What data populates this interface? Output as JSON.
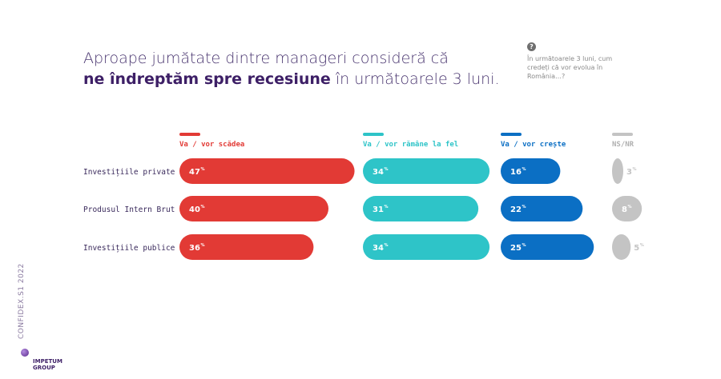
{
  "title": {
    "line1": "Aproape jumătate dintre manageri consideră că",
    "line2_bold": "ne îndreptăm spre recesiune",
    "line2_rest": " în următoarele 3 luni."
  },
  "question": {
    "icon": "question-icon",
    "icon_glyph": "?",
    "text": "În următoarele 3 luni, cum credeți că vor evolua în România…?"
  },
  "side_label": "CONFIDEX.S1 2022",
  "logo": {
    "line1": "IMPETUM",
    "line2": "GROUP"
  },
  "chart_data": {
    "type": "bar",
    "categories": [
      "Investițiile private",
      "Produsul Intern Brut",
      "Investițiile publice"
    ],
    "unit": "%",
    "series": [
      {
        "name": "Va / vor scădea",
        "color": "#e23a35",
        "values": [
          47,
          40,
          36
        ]
      },
      {
        "name": "Va / vor rămâne la fel",
        "color": "#2ec4c8",
        "values": [
          34,
          31,
          34
        ]
      },
      {
        "name": "Va / vor crește",
        "color": "#0b6fc4",
        "values": [
          16,
          22,
          25
        ]
      },
      {
        "name": "NS/NR",
        "color": "#c4c4c4",
        "values": [
          3,
          8,
          5
        ]
      }
    ]
  }
}
